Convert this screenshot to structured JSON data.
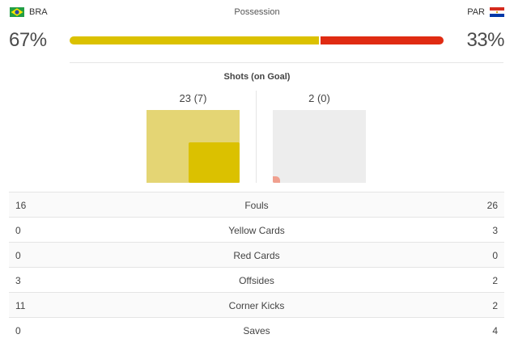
{
  "header": {
    "title": "Possession",
    "home": {
      "code": "BRA",
      "possession_label": "67%",
      "possession": 67
    },
    "away": {
      "code": "PAR",
      "possession_label": "33%",
      "possession": 33
    }
  },
  "colors": {
    "home": "#dbc100",
    "home_light": "#e4d574",
    "away": "#e02b12",
    "away_light": "#f0a08f",
    "empty_box": "#ededed"
  },
  "shots": {
    "title": "Shots (on Goal)",
    "home_label": "23 (7)",
    "away_label": "2 (0)",
    "home_total": 23,
    "home_on_goal": 7,
    "away_total": 2,
    "away_on_goal": 0
  },
  "stats": [
    {
      "label": "Fouls",
      "home": "16",
      "away": "26"
    },
    {
      "label": "Yellow Cards",
      "home": "0",
      "away": "3"
    },
    {
      "label": "Red Cards",
      "home": "0",
      "away": "0"
    },
    {
      "label": "Offsides",
      "home": "3",
      "away": "2"
    },
    {
      "label": "Corner Kicks",
      "home": "11",
      "away": "2"
    },
    {
      "label": "Saves",
      "home": "0",
      "away": "4"
    }
  ]
}
